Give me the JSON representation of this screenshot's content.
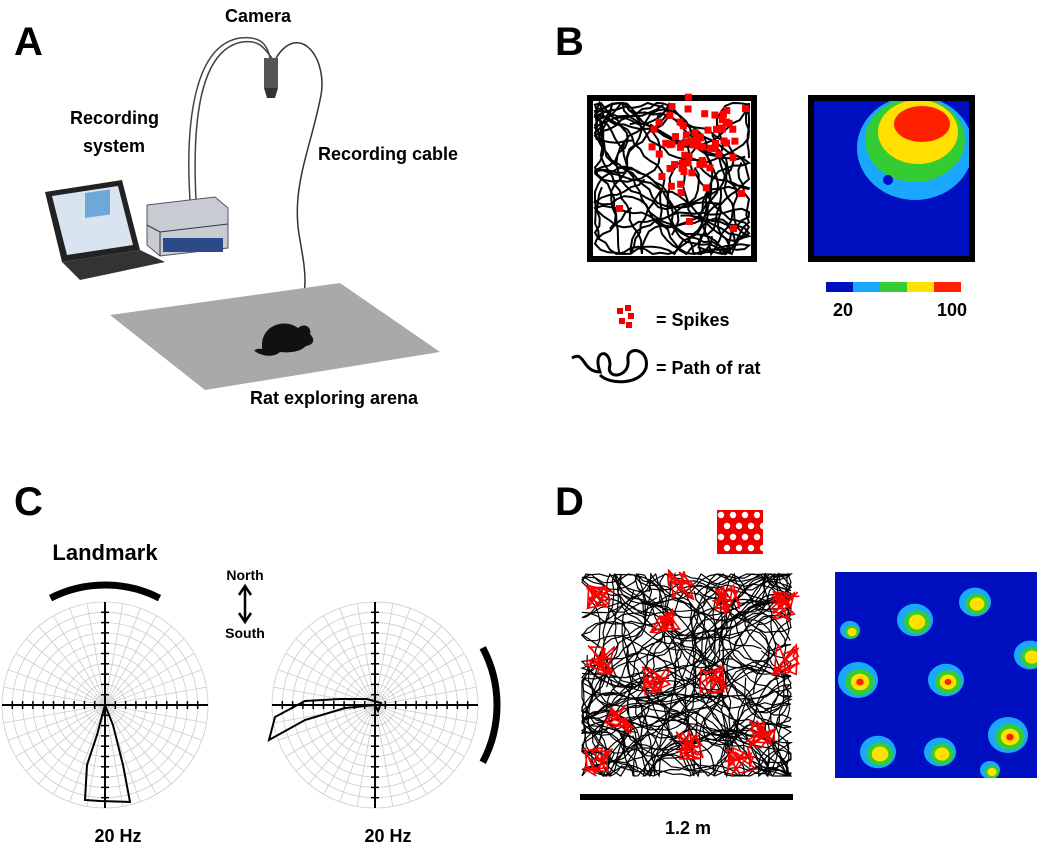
{
  "panel_a": {
    "label": "A",
    "camera": "Camera",
    "recording_system": [
      "Recording",
      "system"
    ],
    "recording_cable": "Recording cable",
    "arena": "Rat exploring arena"
  },
  "panel_b": {
    "label": "B",
    "spikes": "= Spikes",
    "path": "= Path of rat",
    "colorbar_labels": [
      "20",
      "100"
    ]
  },
  "panel_c": {
    "label": "C",
    "landmark": "Landmark",
    "north": "North",
    "south": "South",
    "scale_labels": [
      "20 Hz",
      "20 Hz"
    ]
  },
  "panel_d": {
    "label": "D",
    "scale_bar": "1.2 m"
  }
}
